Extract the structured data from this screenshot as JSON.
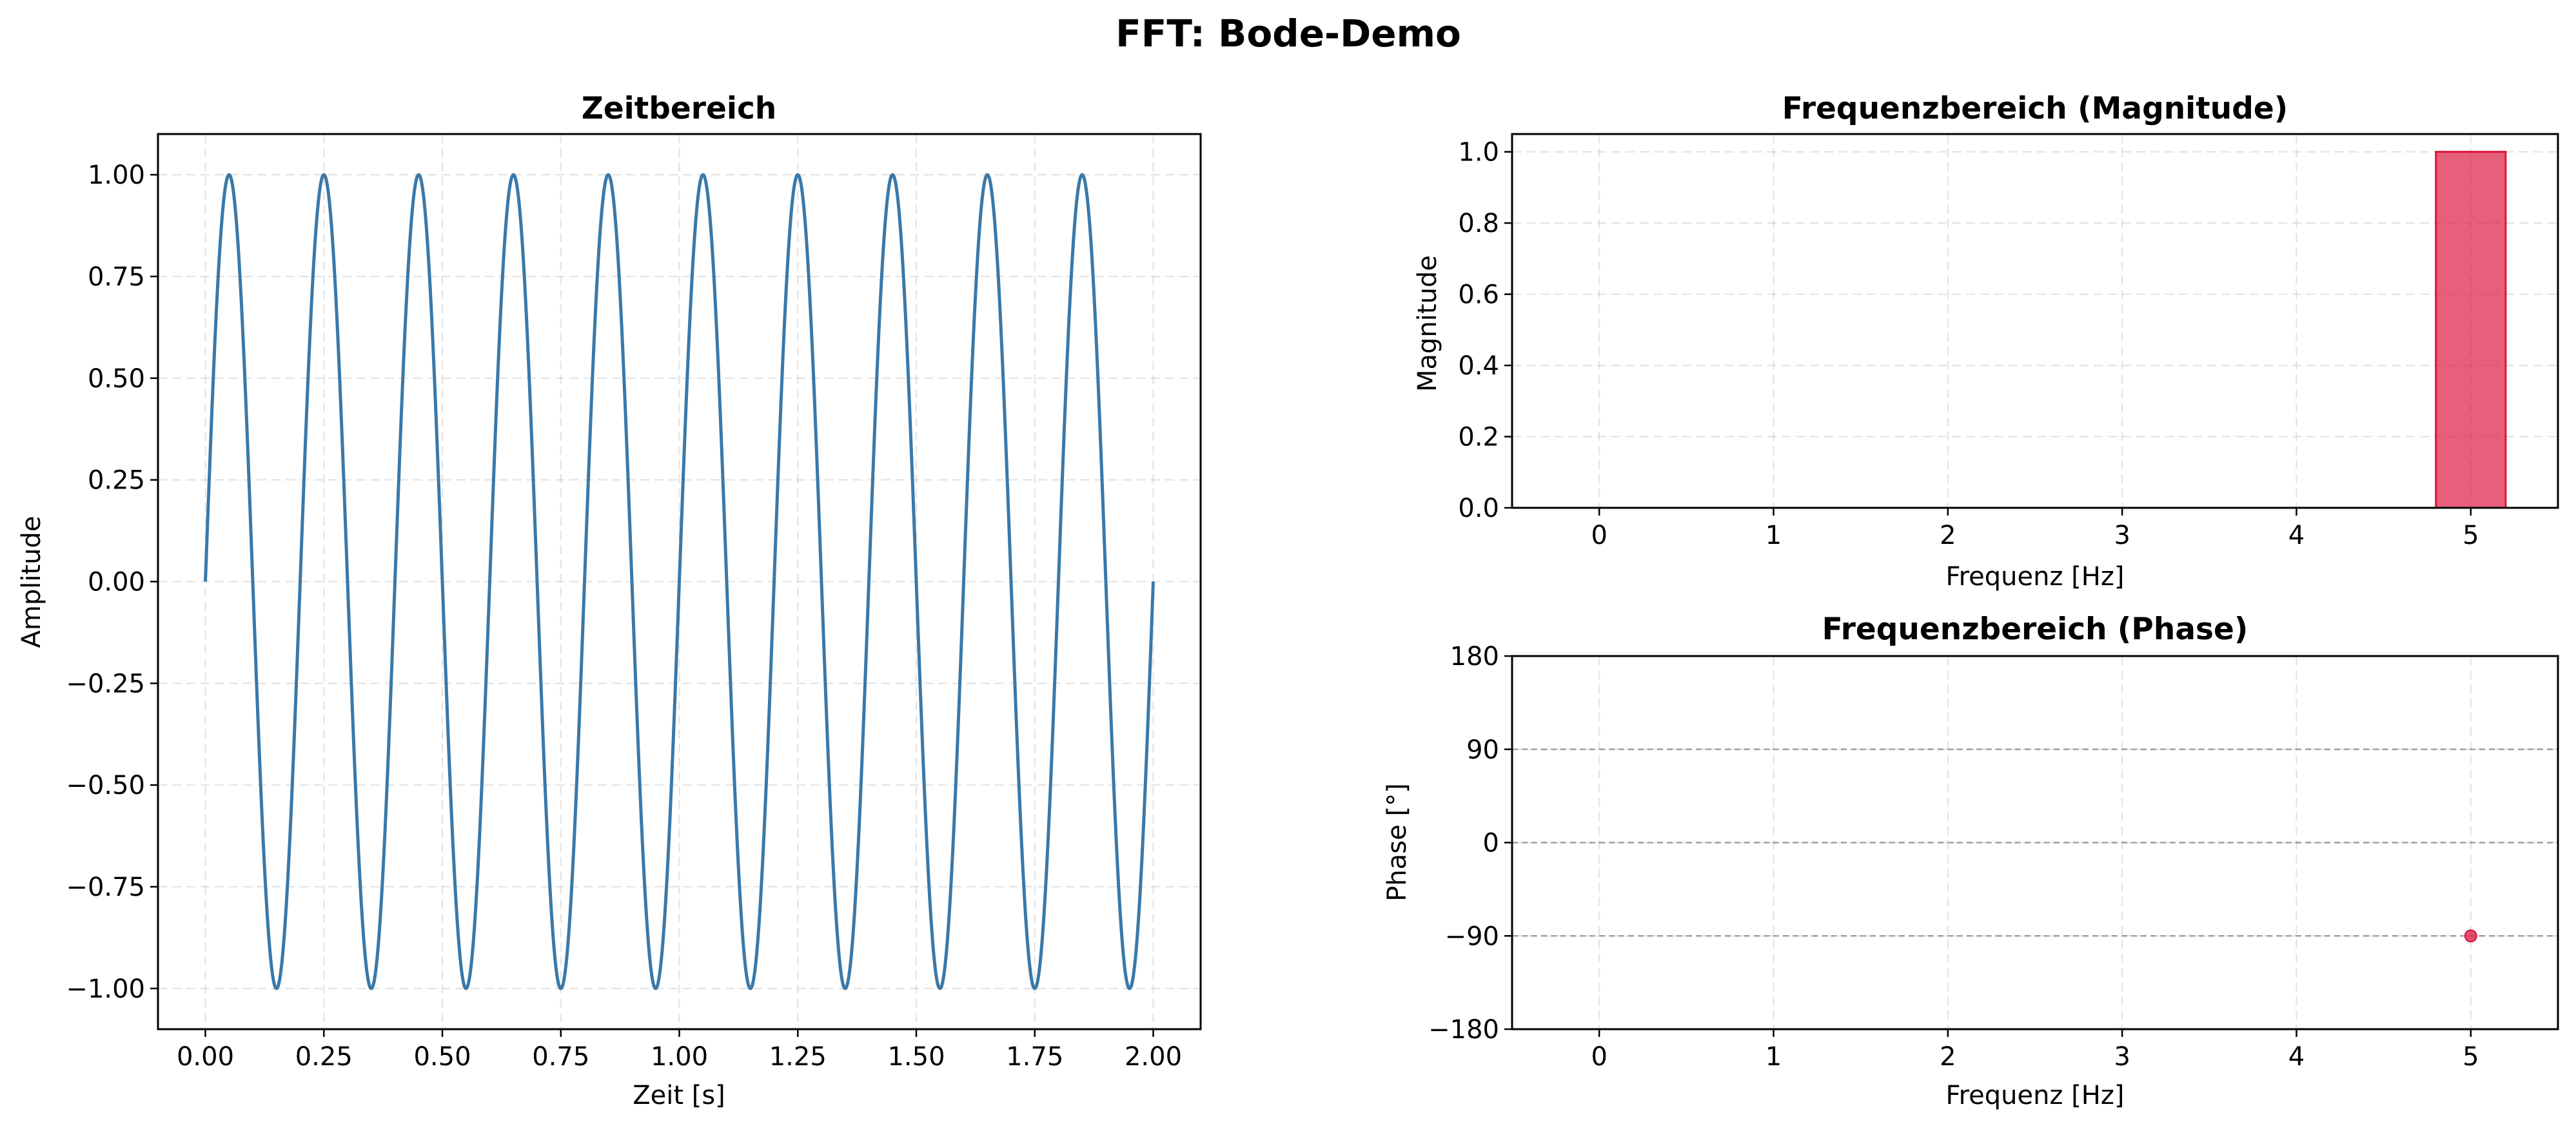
{
  "figure": {
    "title": "FFT: Bode-Demo"
  },
  "chart_data": [
    {
      "type": "line",
      "title": "Zeitbereich",
      "xlabel": "Zeit [s]",
      "ylabel": "Amplitude",
      "xlim": [
        -0.1,
        2.1
      ],
      "ylim": [
        -1.1,
        1.1
      ],
      "xticks": [
        0.0,
        0.25,
        0.5,
        0.75,
        1.0,
        1.25,
        1.5,
        1.75,
        2.0
      ],
      "xticklabels": [
        "0.00",
        "0.25",
        "0.50",
        "0.75",
        "1.00",
        "1.25",
        "1.50",
        "1.75",
        "2.00"
      ],
      "yticks": [
        1.0,
        0.75,
        0.5,
        0.25,
        0.0,
        -0.25,
        -0.5,
        -0.75,
        -1.0
      ],
      "yticklabels": [
        "1.00",
        "0.75",
        "0.50",
        "0.25",
        "0.00",
        "−0.25",
        "−0.50",
        "−0.75",
        "−1.00"
      ],
      "grid": true,
      "color": "#3a78a8",
      "series": [
        {
          "function": "sine",
          "frequency_hz": 5,
          "amplitude": 1.0,
          "t_start": 0.0,
          "t_end": 2.0
        }
      ]
    },
    {
      "type": "bar",
      "title": "Frequenzbereich (Magnitude)",
      "xlabel": "Frequenz [Hz]",
      "ylabel": "Magnitude",
      "xlim": [
        -0.5,
        5.5
      ],
      "ylim": [
        0,
        1.05
      ],
      "xticks": [
        0,
        1,
        2,
        3,
        4,
        5
      ],
      "xticklabels": [
        "0",
        "1",
        "2",
        "3",
        "4",
        "5"
      ],
      "yticks": [
        0.0,
        0.2,
        0.4,
        0.6,
        0.8,
        1.0
      ],
      "yticklabels": [
        "0.0",
        "0.2",
        "0.4",
        "0.6",
        "0.8",
        "1.0"
      ],
      "grid": true,
      "color": "#dc143c",
      "bar_width": 0.4,
      "x": [
        0,
        0.5,
        1,
        1.5,
        2,
        2.5,
        3,
        3.5,
        4,
        4.5,
        5
      ],
      "values": [
        0,
        0,
        0,
        0,
        0,
        0,
        0,
        0,
        0,
        0,
        1.0
      ]
    },
    {
      "type": "scatter",
      "title": "Frequenzbereich (Phase)",
      "xlabel": "Frequenz [Hz]",
      "ylabel": "Phase [°]",
      "xlim": [
        -0.5,
        5.5
      ],
      "ylim": [
        -180,
        180
      ],
      "xticks": [
        0,
        1,
        2,
        3,
        4,
        5
      ],
      "xticklabels": [
        "0",
        "1",
        "2",
        "3",
        "4",
        "5"
      ],
      "yticks": [
        180,
        90,
        0,
        -90,
        -180
      ],
      "yticklabels": [
        "180",
        "90",
        "0",
        "−90",
        "−180"
      ],
      "reference_lines": [
        90,
        0,
        -90
      ],
      "grid": true,
      "color": "#dc143c",
      "points": [
        {
          "x": 5,
          "y": -90
        }
      ]
    }
  ]
}
